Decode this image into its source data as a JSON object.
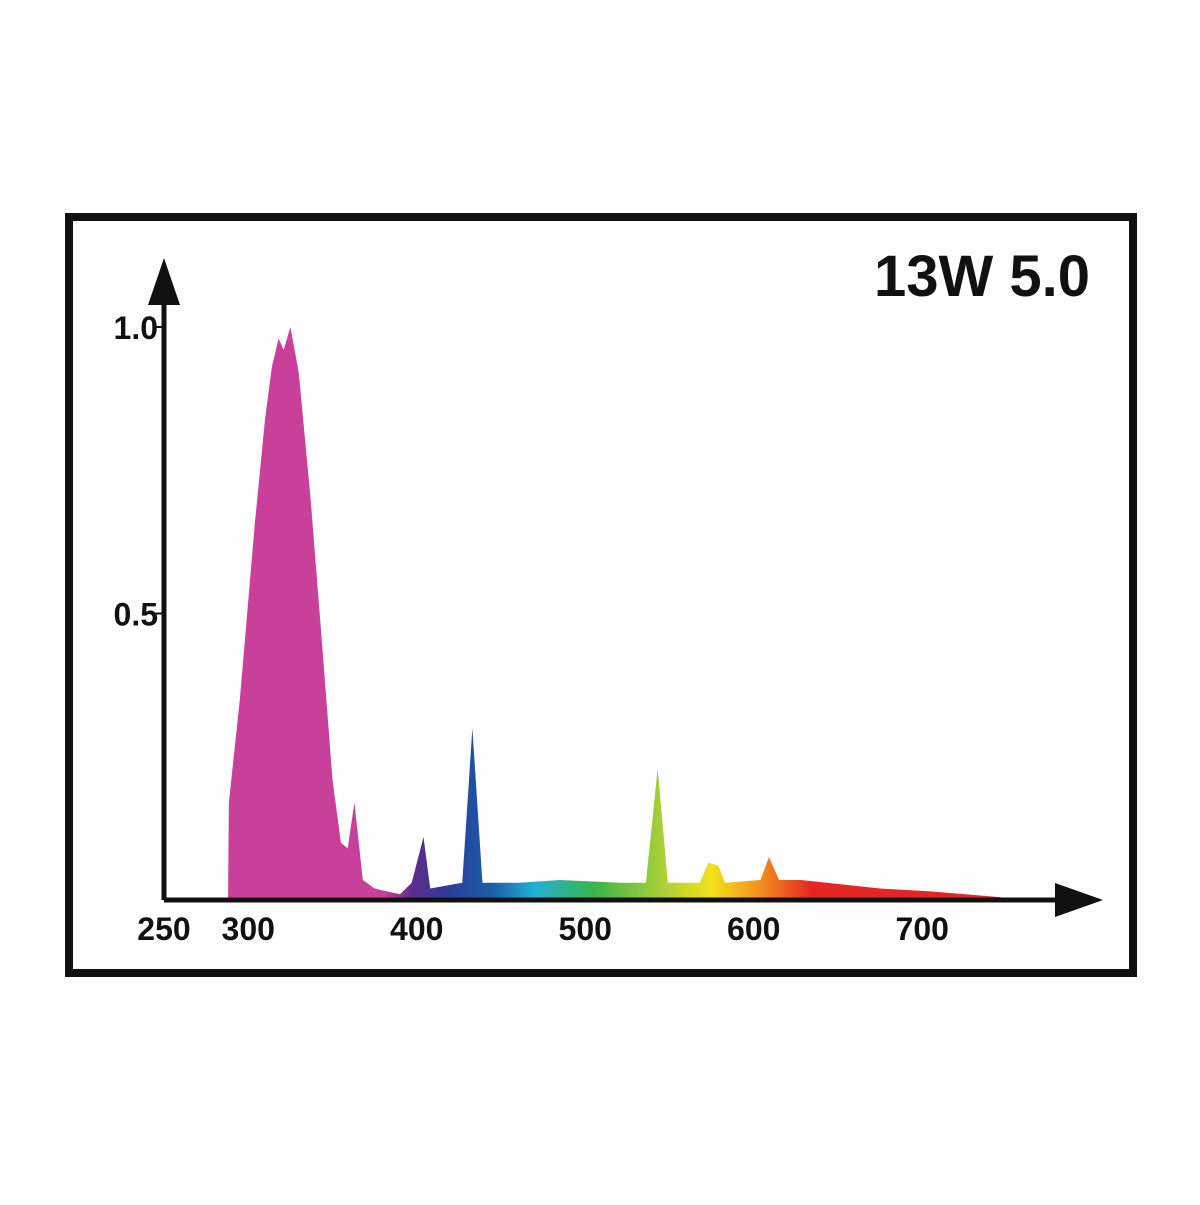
{
  "chart_data": {
    "type": "area",
    "title": "13W 5.0",
    "x": [
      288,
      288.5,
      295,
      304,
      310,
      314,
      318,
      321,
      325,
      330,
      337,
      344,
      350,
      355,
      359,
      363,
      368,
      375,
      390,
      397,
      404,
      408,
      427,
      433,
      439,
      461,
      485,
      521,
      536,
      543,
      549,
      568,
      573,
      579,
      583,
      604,
      609,
      615,
      628,
      675,
      705,
      746,
      758
    ],
    "values": [
      0,
      0.17,
      0.35,
      0.66,
      0.84,
      0.93,
      0.98,
      0.96,
      1.0,
      0.92,
      0.7,
      0.44,
      0.21,
      0.1,
      0.09,
      0.17,
      0.035,
      0.02,
      0.01,
      0.03,
      0.11,
      0.02,
      0.03,
      0.3,
      0.03,
      0.03,
      0.035,
      0.03,
      0.03,
      0.23,
      0.03,
      0.03,
      0.065,
      0.06,
      0.03,
      0.035,
      0.075,
      0.035,
      0.035,
      0.02,
      0.015,
      0.005,
      0
    ],
    "color": "#c9409b",
    "xlim": [
      250,
      800
    ],
    "xticks": [
      250,
      300,
      400,
      500,
      600,
      700
    ],
    "ylim": [
      0,
      1.1
    ],
    "yticks": [
      {
        "value": 0.5,
        "label": "0.5"
      },
      {
        "value": 1,
        "label": "1.0"
      }
    ]
  }
}
